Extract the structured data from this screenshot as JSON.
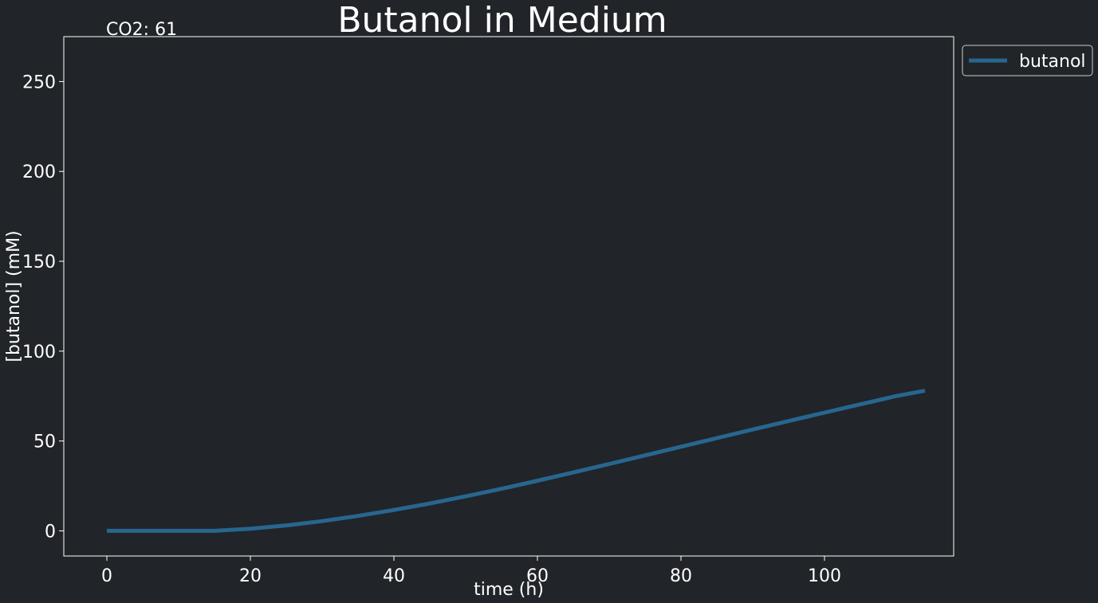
{
  "chart_data": {
    "type": "line",
    "title": "Butanol in Medium",
    "annotation": "CO2: 61",
    "xlabel": "time (h)",
    "ylabel": "[butanol] (mM)",
    "xlim": [
      -6,
      118
    ],
    "ylim": [
      -14,
      275
    ],
    "xticks": [
      0,
      20,
      40,
      60,
      80,
      100
    ],
    "yticks": [
      0,
      50,
      100,
      150,
      200,
      250
    ],
    "legend_position": "outside-top-right",
    "grid": false,
    "series": [
      {
        "name": "butanol",
        "color": "#27668f",
        "x": [
          0,
          5,
          10,
          15,
          20,
          25,
          30,
          35,
          40,
          45,
          50,
          55,
          60,
          65,
          70,
          75,
          80,
          85,
          90,
          95,
          100,
          105,
          110,
          114
        ],
        "y": [
          0,
          0,
          0,
          0,
          1.2,
          3.0,
          5.4,
          8.3,
          11.6,
          15.2,
          19.2,
          23.4,
          27.9,
          32.5,
          37.2,
          42.0,
          46.8,
          51.6,
          56.4,
          61.1,
          65.8,
          70.4,
          75.0,
          78.0
        ]
      }
    ]
  }
}
